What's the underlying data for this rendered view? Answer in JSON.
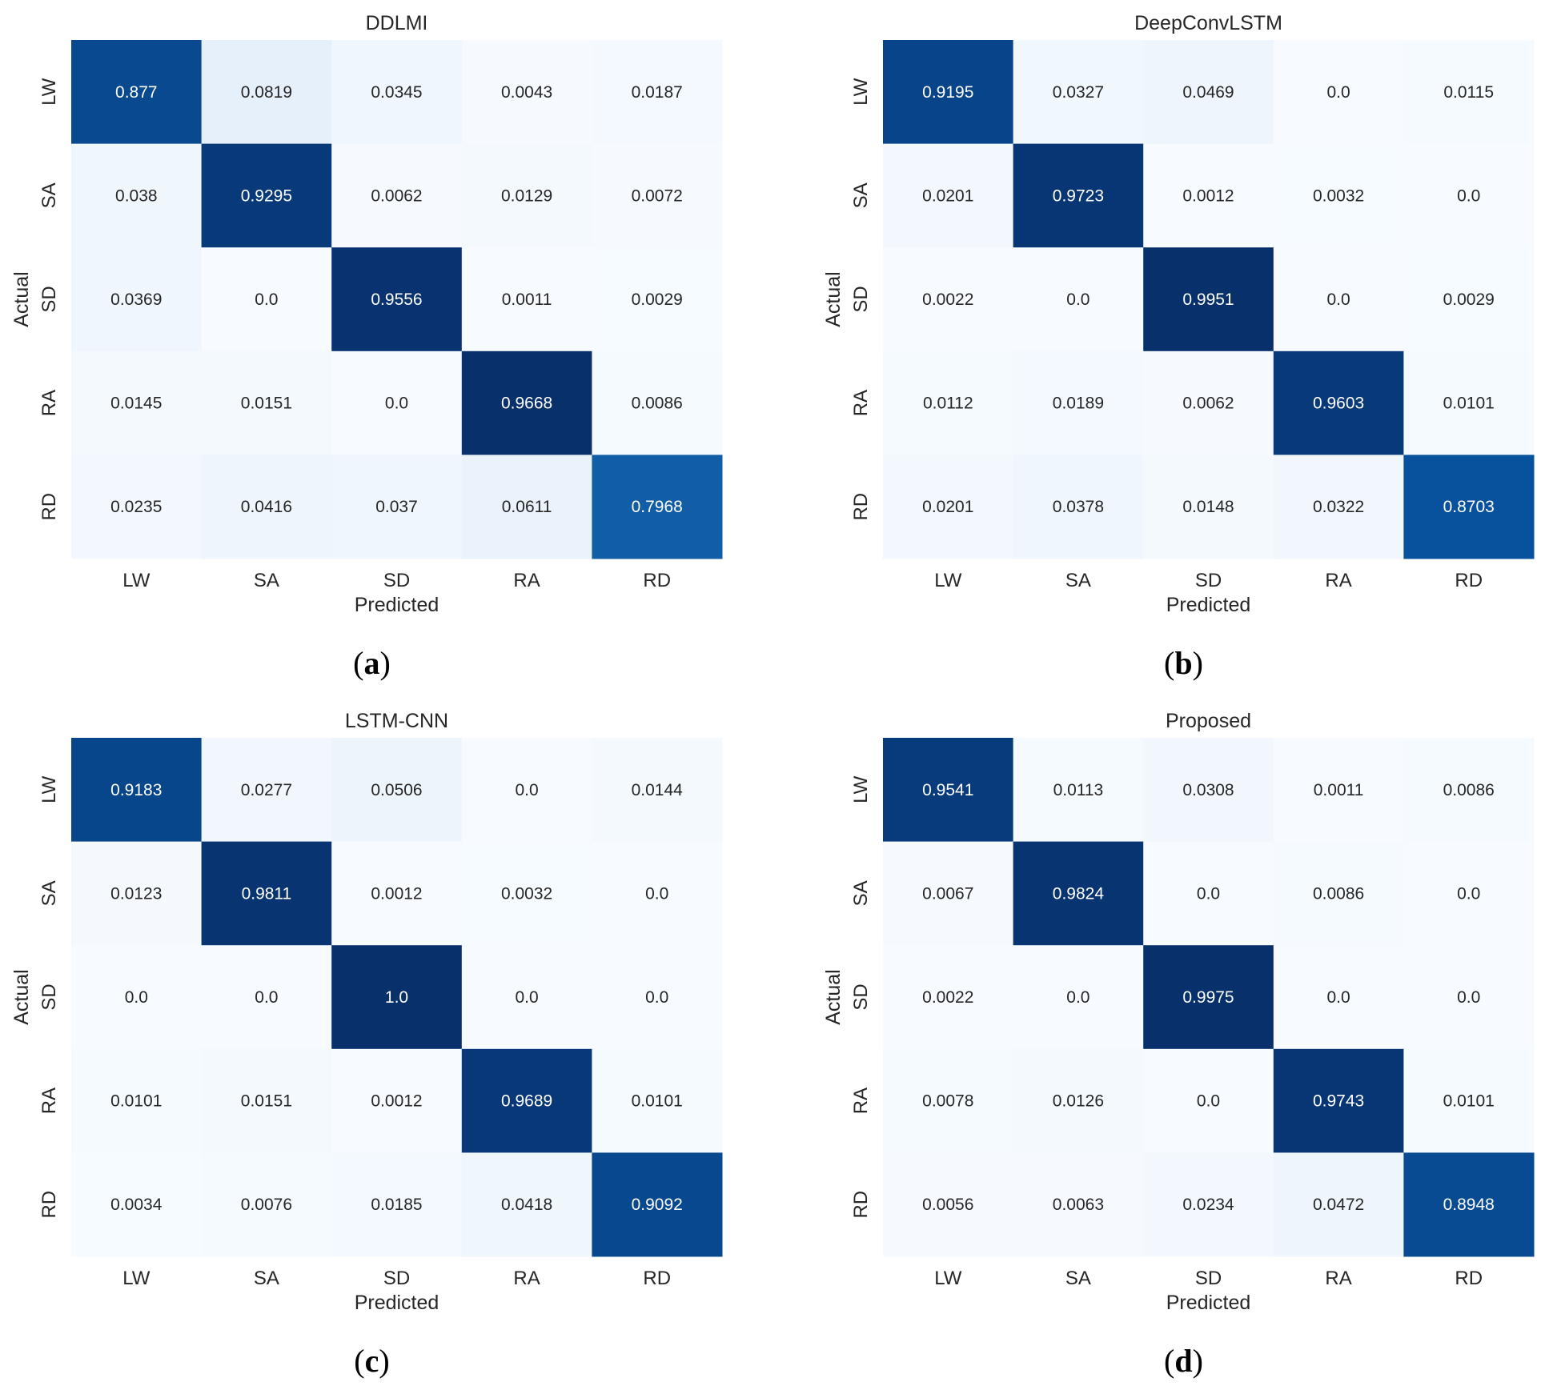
{
  "chart_data": [
    {
      "type": "heatmap",
      "title": "DDLMI",
      "caption": "a",
      "xlabel": "Predicted",
      "ylabel": "Actual",
      "x_categories": [
        "LW",
        "SA",
        "SD",
        "RA",
        "RD"
      ],
      "y_categories": [
        "LW",
        "SA",
        "SD",
        "RA",
        "RD"
      ],
      "values": [
        [
          "0.877",
          "0.0819",
          "0.0345",
          "0.0043",
          "0.0187"
        ],
        [
          "0.038",
          "0.9295",
          "0.0062",
          "0.0129",
          "0.0072"
        ],
        [
          "0.0369",
          "0.0",
          "0.9556",
          "0.0011",
          "0.0029"
        ],
        [
          "0.0145",
          "0.0151",
          "0.0",
          "0.9668",
          "0.0086"
        ],
        [
          "0.0235",
          "0.0416",
          "0.037",
          "0.0611",
          "0.7968"
        ]
      ],
      "colormap": "Blues",
      "colorbar": false
    },
    {
      "type": "heatmap",
      "title": "DeepConvLSTM",
      "caption": "b",
      "xlabel": "Predicted",
      "ylabel": "Actual",
      "x_categories": [
        "LW",
        "SA",
        "SD",
        "RA",
        "RD"
      ],
      "y_categories": [
        "LW",
        "SA",
        "SD",
        "RA",
        "RD"
      ],
      "values": [
        [
          "0.9195",
          "0.0327",
          "0.0469",
          "0.0",
          "0.0115"
        ],
        [
          "0.0201",
          "0.9723",
          "0.0012",
          "0.0032",
          "0.0"
        ],
        [
          "0.0022",
          "0.0",
          "0.9951",
          "0.0",
          "0.0029"
        ],
        [
          "0.0112",
          "0.0189",
          "0.0062",
          "0.9603",
          "0.0101"
        ],
        [
          "0.0201",
          "0.0378",
          "0.0148",
          "0.0322",
          "0.8703"
        ]
      ],
      "colormap": "Blues",
      "colorbar": false
    },
    {
      "type": "heatmap",
      "title": "LSTM-CNN",
      "caption": "c",
      "xlabel": "Predicted",
      "ylabel": "Actual",
      "x_categories": [
        "LW",
        "SA",
        "SD",
        "RA",
        "RD"
      ],
      "y_categories": [
        "LW",
        "SA",
        "SD",
        "RA",
        "RD"
      ],
      "values": [
        [
          "0.9183",
          "0.0277",
          "0.0506",
          "0.0",
          "0.0144"
        ],
        [
          "0.0123",
          "0.9811",
          "0.0012",
          "0.0032",
          "0.0"
        ],
        [
          "0.0",
          "0.0",
          "1.0",
          "0.0",
          "0.0"
        ],
        [
          "0.0101",
          "0.0151",
          "0.0012",
          "0.9689",
          "0.0101"
        ],
        [
          "0.0034",
          "0.0076",
          "0.0185",
          "0.0418",
          "0.9092"
        ]
      ],
      "colormap": "Blues",
      "colorbar": false
    },
    {
      "type": "heatmap",
      "title": "Proposed",
      "caption": "d",
      "xlabel": "Predicted",
      "ylabel": "Actual",
      "x_categories": [
        "LW",
        "SA",
        "SD",
        "RA",
        "RD"
      ],
      "y_categories": [
        "LW",
        "SA",
        "SD",
        "RA",
        "RD"
      ],
      "values": [
        [
          "0.9541",
          "0.0113",
          "0.0308",
          "0.0011",
          "0.0086"
        ],
        [
          "0.0067",
          "0.9824",
          "0.0",
          "0.0086",
          "0.0"
        ],
        [
          "0.0022",
          "0.0",
          "0.9975",
          "0.0",
          "0.0"
        ],
        [
          "0.0078",
          "0.0126",
          "0.0",
          "0.9743",
          "0.0101"
        ],
        [
          "0.0056",
          "0.0063",
          "0.0234",
          "0.0472",
          "0.8948"
        ]
      ],
      "colormap": "Blues",
      "colorbar": false
    }
  ]
}
